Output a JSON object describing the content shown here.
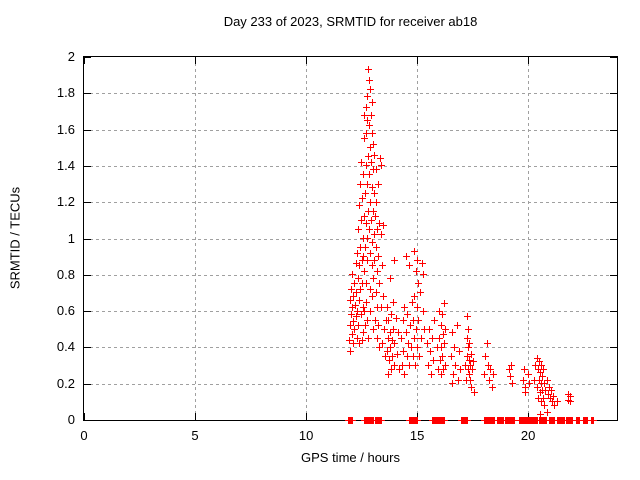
{
  "colors": {
    "background": "#ffffff",
    "text": "#000000",
    "border": "#000000",
    "grid": "#a0a0a0",
    "marker": "#ff0000"
  },
  "chart_data": {
    "type": "scatter",
    "title": "Day 233 of 2023, SRMTID for receiver ab18",
    "xlabel": "GPS time / hours",
    "ylabel": "SRMTID / TECUs",
    "xlim": [
      0,
      24
    ],
    "ylim": [
      0,
      2
    ],
    "xticks": [
      0,
      5,
      10,
      15,
      20
    ],
    "xtick_labels": [
      "0",
      "5",
      "10",
      "15",
      "20"
    ],
    "yticks": [
      0,
      0.2,
      0.4,
      0.6,
      0.8,
      1,
      1.2,
      1.4,
      1.6,
      1.8,
      2
    ],
    "ytick_labels": [
      "0",
      "0.2",
      "0.4",
      "0.6",
      "0.8",
      "1",
      "1.2",
      "1.4",
      "1.6",
      "1.8",
      "2"
    ],
    "grid": true,
    "legend": "none",
    "marker": "plus",
    "marker_color": "#ff0000",
    "series": [
      {
        "name": "SRMTID",
        "points": [
          [
            11.97,
            0.44
          ],
          [
            12.0,
            0.52
          ],
          [
            12.0,
            0.66
          ],
          [
            12.02,
            0.38
          ],
          [
            12.05,
            0.58
          ],
          [
            12.05,
            0.72
          ],
          [
            12.08,
            0.47
          ],
          [
            12.1,
            0.62
          ],
          [
            12.1,
            0.8
          ],
          [
            12.12,
            0.54
          ],
          [
            12.15,
            0.68
          ],
          [
            12.15,
            0.42
          ],
          [
            12.18,
            0.75
          ],
          [
            12.2,
            0.5
          ],
          [
            12.22,
            0.63
          ],
          [
            12.25,
            0.86
          ],
          [
            12.25,
            0.57
          ],
          [
            12.28,
            0.7
          ],
          [
            12.3,
            0.45
          ],
          [
            12.3,
            0.92
          ],
          [
            12.32,
            0.6
          ],
          [
            12.35,
            1.05
          ],
          [
            12.35,
            0.78
          ],
          [
            12.38,
            0.52
          ],
          [
            12.4,
            1.18
          ],
          [
            12.4,
            0.85
          ],
          [
            12.42,
            0.66
          ],
          [
            12.42,
            0.42
          ],
          [
            12.45,
            1.3
          ],
          [
            12.45,
            0.95
          ],
          [
            12.47,
            0.72
          ],
          [
            12.5,
            1.42
          ],
          [
            12.5,
            1.1
          ],
          [
            12.5,
            0.58
          ],
          [
            12.52,
            0.88
          ],
          [
            12.55,
            1.22
          ],
          [
            12.55,
            0.75
          ],
          [
            12.55,
            0.44
          ],
          [
            12.57,
            1.0
          ],
          [
            12.58,
            0.62
          ],
          [
            12.6,
            1.35
          ],
          [
            12.6,
            0.9
          ],
          [
            12.6,
            0.48
          ],
          [
            12.62,
            1.55
          ],
          [
            12.63,
            1.12
          ],
          [
            12.63,
            0.6
          ],
          [
            12.65,
            1.68
          ],
          [
            12.65,
            0.82
          ],
          [
            12.67,
            1.25
          ],
          [
            12.67,
            0.52
          ],
          [
            12.68,
            0.95
          ],
          [
            12.7,
            1.72
          ],
          [
            12.7,
            1.4
          ],
          [
            12.7,
            0.65
          ],
          [
            12.72,
            1.08
          ],
          [
            12.72,
            0.75
          ],
          [
            12.73,
            1.58
          ],
          [
            12.75,
            0.88
          ],
          [
            12.75,
            1.3
          ],
          [
            12.77,
            1.65
          ],
          [
            12.77,
            1.78
          ],
          [
            12.78,
            1.0
          ],
          [
            12.78,
            0.55
          ],
          [
            12.8,
            1.45
          ],
          [
            12.8,
            1.15
          ],
          [
            12.82,
            1.93
          ],
          [
            12.83,
            0.45
          ],
          [
            12.85,
            1.62
          ],
          [
            12.85,
            1.05
          ],
          [
            12.87,
            1.87
          ],
          [
            12.87,
            1.35
          ],
          [
            12.88,
            0.72
          ],
          [
            12.9,
            1.5
          ],
          [
            12.9,
            1.2
          ],
          [
            12.9,
            0.92
          ],
          [
            12.92,
            1.82
          ],
          [
            12.92,
            0.6
          ],
          [
            12.93,
            1.68
          ],
          [
            12.95,
            1.1
          ],
          [
            12.95,
            1.42
          ],
          [
            12.97,
            0.85
          ],
          [
            12.97,
            1.58
          ],
          [
            12.98,
            1.28
          ],
          [
            13.0,
            1.75
          ],
          [
            13.0,
            0.98
          ],
          [
            13.0,
            0.68
          ],
          [
            13.02,
            1.38
          ],
          [
            13.02,
            1.15
          ],
          [
            13.03,
            0.78
          ],
          [
            13.05,
            1.52
          ],
          [
            13.05,
            0.5
          ],
          [
            13.07,
            1.46
          ],
          [
            13.08,
            1.02
          ],
          [
            13.1,
            1.25
          ],
          [
            13.1,
            0.88
          ],
          [
            13.12,
            0.55
          ],
          [
            13.13,
            1.12
          ],
          [
            13.15,
            1.38
          ],
          [
            13.15,
            0.7
          ],
          [
            13.17,
            0.95
          ],
          [
            13.18,
            1.2
          ],
          [
            13.2,
            0.82
          ],
          [
            13.2,
            0.45
          ],
          [
            13.22,
            1.05
          ],
          [
            13.23,
            0.62
          ],
          [
            13.25,
            1.3
          ],
          [
            13.25,
            0.9
          ],
          [
            13.28,
            0.52
          ],
          [
            13.3,
            1.08
          ],
          [
            13.3,
            0.75
          ],
          [
            13.32,
            0.4
          ],
          [
            13.35,
            1.44
          ],
          [
            13.38,
            1.4
          ],
          [
            13.4,
            1.02
          ],
          [
            13.4,
            0.62
          ],
          [
            13.45,
            0.85
          ],
          [
            13.45,
            0.42
          ],
          [
            13.5,
            1.07
          ],
          [
            13.5,
            0.68
          ],
          [
            13.55,
            0.5
          ],
          [
            13.58,
            0.35
          ],
          [
            13.62,
            0.55
          ],
          [
            13.65,
            0.38
          ],
          [
            13.68,
            0.62
          ],
          [
            13.7,
            0.45
          ],
          [
            13.7,
            0.25
          ],
          [
            13.73,
            0.55
          ],
          [
            13.75,
            0.33
          ],
          [
            13.78,
            0.48
          ],
          [
            13.8,
            0.78
          ],
          [
            13.8,
            0.4
          ],
          [
            13.83,
            0.28
          ],
          [
            13.85,
            0.58
          ],
          [
            13.88,
            0.44
          ],
          [
            13.9,
            0.35
          ],
          [
            13.92,
            0.65
          ],
          [
            13.95,
            0.5
          ],
          [
            13.97,
            0.3
          ],
          [
            14.0,
            0.88
          ],
          [
            14.0,
            0.42
          ],
          [
            14.05,
            0.56
          ],
          [
            14.1,
            0.36
          ],
          [
            14.15,
            0.48
          ],
          [
            14.2,
            0.28
          ],
          [
            14.3,
            0.45
          ],
          [
            14.33,
            0.3
          ],
          [
            14.37,
            0.55
          ],
          [
            14.4,
            0.38
          ],
          [
            14.43,
            0.62
          ],
          [
            14.45,
            0.25
          ],
          [
            14.5,
            0.48
          ],
          [
            14.5,
            0.9
          ],
          [
            14.55,
            0.35
          ],
          [
            14.58,
            0.58
          ],
          [
            14.6,
            0.42
          ],
          [
            14.65,
            0.85
          ],
          [
            14.65,
            0.3
          ],
          [
            14.7,
            0.52
          ],
          [
            14.75,
            0.4
          ],
          [
            14.78,
            0.65
          ],
          [
            14.82,
            0.35
          ],
          [
            14.85,
            0.55
          ],
          [
            14.88,
            0.45
          ],
          [
            14.9,
            0.93
          ],
          [
            14.9,
            0.68
          ],
          [
            14.93,
            0.3
          ],
          [
            14.95,
            0.82
          ],
          [
            14.97,
            0.5
          ],
          [
            15.0,
            0.88
          ],
          [
            15.0,
            0.62
          ],
          [
            15.02,
            0.4
          ],
          [
            15.05,
            0.75
          ],
          [
            15.08,
            0.55
          ],
          [
            15.1,
            0.35
          ],
          [
            15.15,
            0.7
          ],
          [
            15.2,
            0.45
          ],
          [
            15.25,
            0.86
          ],
          [
            15.3,
            0.8
          ],
          [
            15.3,
            0.6
          ],
          [
            15.35,
            0.5
          ],
          [
            15.45,
            0.42
          ],
          [
            15.5,
            0.3
          ],
          [
            15.55,
            0.5
          ],
          [
            15.6,
            0.38
          ],
          [
            15.65,
            0.25
          ],
          [
            15.7,
            0.45
          ],
          [
            15.75,
            0.33
          ],
          [
            15.8,
            0.55
          ],
          [
            15.9,
            0.4
          ],
          [
            15.95,
            0.28
          ],
          [
            16.0,
            0.6
          ],
          [
            16.02,
            0.45
          ],
          [
            16.05,
            0.33
          ],
          [
            16.08,
            0.52
          ],
          [
            16.1,
            0.4
          ],
          [
            16.1,
            0.25
          ],
          [
            16.13,
            0.58
          ],
          [
            16.15,
            0.35
          ],
          [
            16.18,
            0.47
          ],
          [
            16.2,
            0.28
          ],
          [
            16.22,
            0.64
          ],
          [
            16.25,
            0.42
          ],
          [
            16.28,
            0.3
          ],
          [
            16.3,
            0.5
          ],
          [
            16.55,
            0.35
          ],
          [
            16.6,
            0.48
          ],
          [
            16.6,
            0.2
          ],
          [
            16.65,
            0.25
          ],
          [
            16.7,
            0.4
          ],
          [
            16.75,
            0.3
          ],
          [
            16.8,
            0.52
          ],
          [
            16.85,
            0.22
          ],
          [
            16.9,
            0.38
          ],
          [
            16.95,
            0.28
          ],
          [
            17.2,
            0.3
          ],
          [
            17.22,
            0.22
          ],
          [
            17.25,
            0.45
          ],
          [
            17.25,
            0.35
          ],
          [
            17.28,
            0.57
          ],
          [
            17.3,
            0.28
          ],
          [
            17.3,
            0.4
          ],
          [
            17.32,
            0.5
          ],
          [
            17.35,
            0.25
          ],
          [
            17.35,
            0.33
          ],
          [
            17.38,
            0.42
          ],
          [
            17.4,
            0.3
          ],
          [
            17.42,
            0.22
          ],
          [
            17.45,
            0.36
          ],
          [
            17.45,
            0.18
          ],
          [
            17.5,
            0.28
          ],
          [
            17.55,
            0.32
          ],
          [
            17.6,
            0.15
          ],
          [
            18.05,
            0.25
          ],
          [
            18.1,
            0.35
          ],
          [
            18.15,
            0.42
          ],
          [
            18.2,
            0.3
          ],
          [
            18.25,
            0.22
          ],
          [
            18.3,
            0.28
          ],
          [
            18.4,
            0.18
          ],
          [
            18.45,
            0.25
          ],
          [
            19.15,
            0.28
          ],
          [
            19.2,
            0.24
          ],
          [
            19.25,
            0.3
          ],
          [
            19.3,
            0.2
          ],
          [
            19.8,
            0.22
          ],
          [
            19.85,
            0.28
          ],
          [
            19.9,
            0.18
          ],
          [
            19.9,
            0.15
          ],
          [
            20.0,
            0.25
          ],
          [
            20.05,
            0.2
          ],
          [
            20.3,
            0.22
          ],
          [
            20.35,
            0.3
          ],
          [
            20.4,
            0.34
          ],
          [
            20.4,
            0.18
          ],
          [
            20.45,
            0.28
          ],
          [
            20.45,
            0.12
          ],
          [
            20.5,
            0.32
          ],
          [
            20.5,
            0.22
          ],
          [
            20.55,
            0.26
          ],
          [
            20.55,
            0.15
          ],
          [
            20.55,
            0.03
          ],
          [
            20.6,
            0.3
          ],
          [
            20.6,
            0.2
          ],
          [
            20.62,
            0.1
          ],
          [
            20.65,
            0.24
          ],
          [
            20.65,
            0.16
          ],
          [
            20.7,
            0.28
          ],
          [
            20.7,
            0.12
          ],
          [
            20.75,
            0.2
          ],
          [
            20.75,
            0.08
          ],
          [
            20.8,
            0.16
          ],
          [
            20.85,
            0.22
          ],
          [
            20.85,
            0.04
          ],
          [
            20.9,
            0.14
          ],
          [
            20.95,
            0.18
          ],
          [
            21.0,
            0.12
          ],
          [
            21.05,
            0.16
          ],
          [
            21.1,
            0.1
          ],
          [
            21.15,
            0.13
          ],
          [
            21.2,
            0.08
          ],
          [
            21.3,
            0.1
          ],
          [
            21.8,
            0.14
          ],
          [
            21.82,
            0.11
          ],
          [
            21.9,
            0.13
          ],
          [
            21.92,
            0.1
          ]
        ],
        "zero_runs": [
          [
            11.9,
            12.12
          ],
          [
            12.64,
            13.05
          ],
          [
            13.12,
            13.42
          ],
          [
            14.66,
            15.02
          ],
          [
            15.7,
            16.24
          ],
          [
            17.02,
            17.3
          ],
          [
            18.05,
            18.52
          ],
          [
            18.62,
            18.9
          ],
          [
            19.0,
            19.42
          ],
          [
            19.6,
            20.42
          ],
          [
            20.52,
            20.85
          ],
          [
            20.98,
            21.22
          ],
          [
            21.33,
            21.65
          ],
          [
            21.74,
            22.05
          ],
          [
            22.18,
            22.33
          ],
          [
            22.5,
            22.69
          ],
          [
            22.85,
            22.95
          ]
        ],
        "zero_run_step": 0.045
      }
    ]
  }
}
